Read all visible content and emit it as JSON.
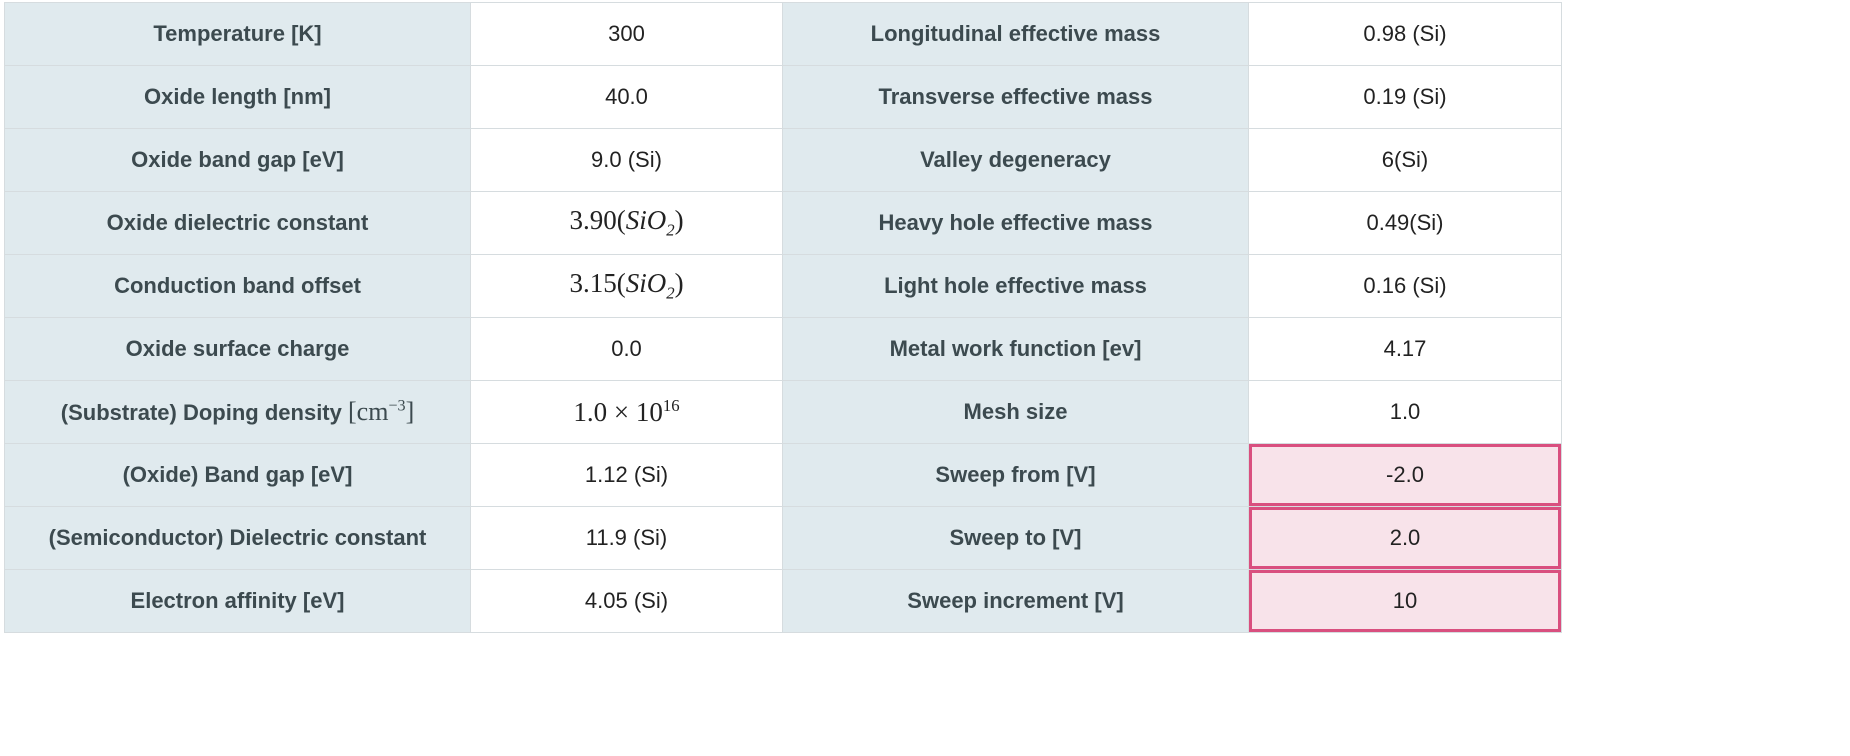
{
  "rows": [
    {
      "left_label": "Temperature [K]",
      "left_value": "300",
      "right_label": "Longitudinal effective mass",
      "right_value": "0.98 (Si)"
    },
    {
      "left_label": "Oxide length [nm]",
      "left_value": "40.0",
      "right_label": "Transverse effective mass",
      "right_value": "0.19 (Si)"
    },
    {
      "left_label": "Oxide band gap [eV]",
      "left_value": "9.0 (Si)",
      "right_label": "Valley degeneracy",
      "right_value": "6(Si)"
    },
    {
      "left_label": "Oxide dielectric constant",
      "left_value_num": "3.90",
      "left_value_open": "(",
      "left_value_sym": "SiO",
      "left_value_sub": "2",
      "left_value_close": ")",
      "right_label": "Heavy hole effective mass",
      "right_value": "0.49(Si)"
    },
    {
      "left_label": "Conduction band offset",
      "left_value_num": "3.15",
      "left_value_open": "(",
      "left_value_sym": "SiO",
      "left_value_sub": "2",
      "left_value_close": ")",
      "right_label": "Light hole effective mass",
      "right_value": "0.16 (Si)"
    },
    {
      "left_label": "Oxide surface charge",
      "left_value": "0.0",
      "right_label": "Metal work function [ev]",
      "right_value": "4.17"
    },
    {
      "left_label": "(Substrate) Doping density",
      "left_unit_base": "[cm",
      "left_unit_exp": "−3",
      "left_unit_close": "]",
      "left_value_base": "1.0 × 10",
      "left_value_exp": "16",
      "right_label": "Mesh size",
      "right_value": "1.0"
    },
    {
      "left_label": "(Oxide) Band gap [eV]",
      "left_value": "1.12 (Si)",
      "right_label": "Sweep from [V]",
      "right_value": "-2.0"
    },
    {
      "left_label": "(Semiconductor) Dielectric constant",
      "left_value": "11.9 (Si)",
      "right_label": "Sweep to [V]",
      "right_value": "2.0"
    },
    {
      "left_label": "Electron affinity [eV]",
      "left_value": "4.05 (Si)",
      "right_label": "Sweep increment [V]",
      "right_value": "10"
    }
  ],
  "colors": {
    "label_bg": "#e0eaee",
    "value_bg": "#ffffff",
    "input_bg": "#f8e3ea",
    "input_border": "#d94f7f"
  }
}
